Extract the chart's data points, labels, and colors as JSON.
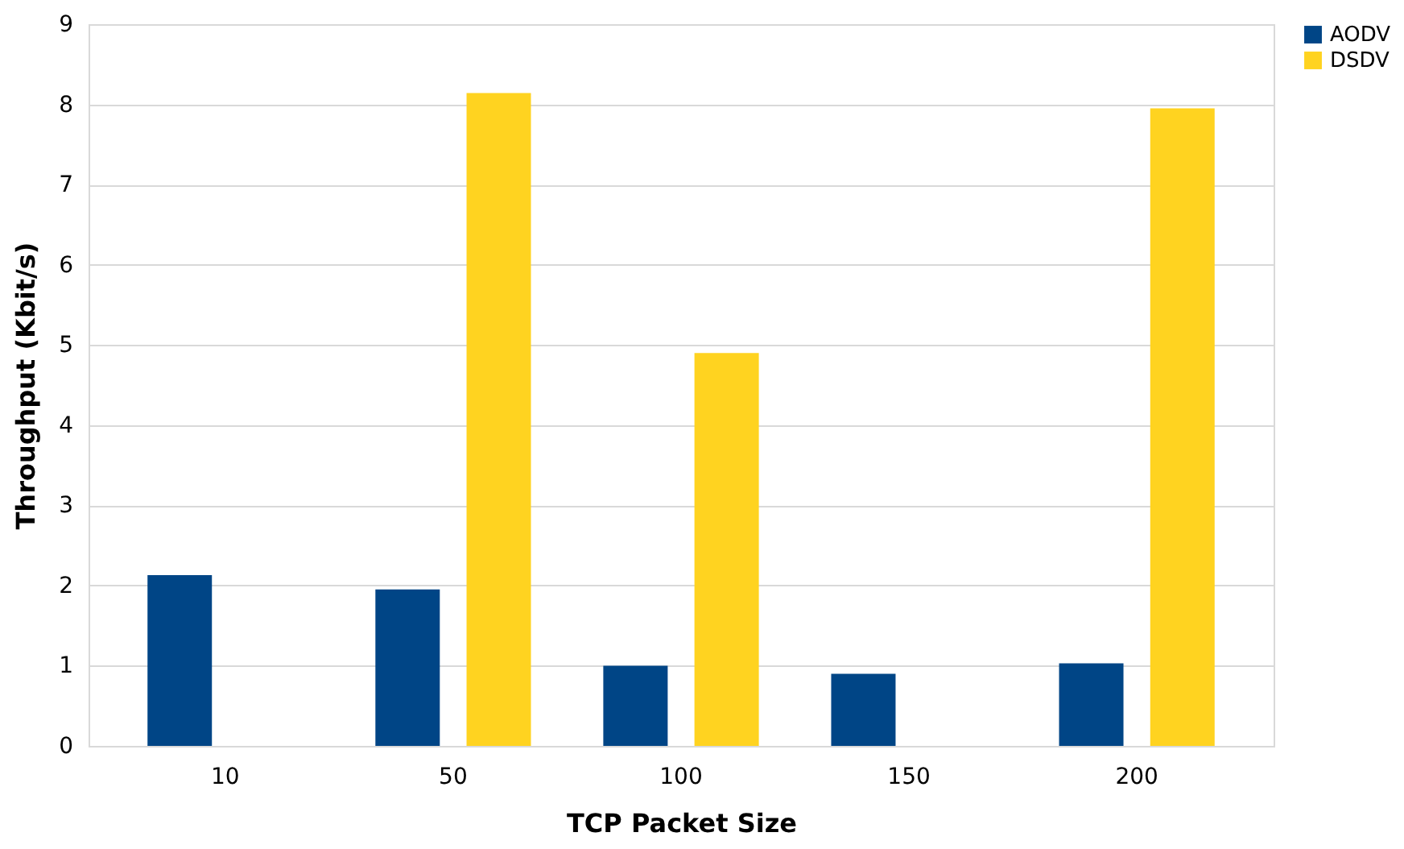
{
  "chart_data": {
    "type": "bar",
    "xlabel": "TCP Packet Size",
    "ylabel": "Throughput (Kbit/s)",
    "categories": [
      "10",
      "50",
      "100",
      "150",
      "200"
    ],
    "series": [
      {
        "name": "AODV",
        "color": "#004586",
        "values": [
          2.13,
          1.95,
          1.0,
          0.9,
          1.03
        ]
      },
      {
        "name": "DSDV",
        "color": "#ffd320",
        "values": [
          0,
          8.14,
          4.9,
          0,
          7.95
        ]
      }
    ],
    "ylim": [
      0,
      9
    ],
    "yticks": [
      0,
      1,
      2,
      3,
      4,
      5,
      6,
      7,
      8,
      9
    ],
    "grid": "y",
    "legend": "right"
  }
}
